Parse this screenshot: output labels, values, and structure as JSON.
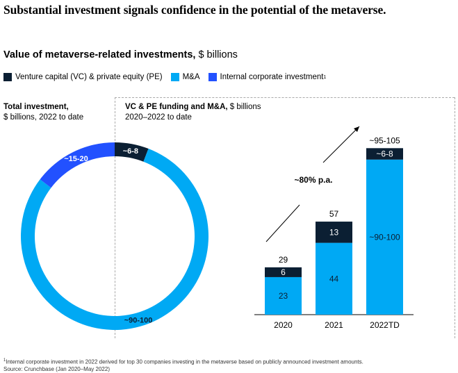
{
  "headline": "Substantial investment signals confidence in the potential of the metaverse.",
  "subtitle": {
    "bold": "Value of metaverse-related investments,",
    "rest": " $ billions"
  },
  "legend": [
    {
      "label": "Venture capital (VC) & private equity (PE)",
      "color": "#0b1f33",
      "sup": ""
    },
    {
      "label": "M&A",
      "color": "#00a9f4",
      "sup": ""
    },
    {
      "label": "Internal corporate investment",
      "color": "#2251ff",
      "sup": "1"
    }
  ],
  "left_panel": {
    "title": "Total investment,",
    "subtitle": "$ billions, 2022 to date"
  },
  "right_panel": {
    "title": "VC & PE funding and M&A,",
    "unit": " $ billions",
    "subtitle": "2020–2022 to date"
  },
  "growth_label": "~80% p.a.",
  "footnote": {
    "sup": "1",
    "line1": "Internal corporate investment in 2022 derived for top 30 companies investing in the metaverse based on publicly announced investment amounts.",
    "line2": "Source: Crunchbase (Jan 2020–May 2022)"
  },
  "chart_data": [
    {
      "type": "pie",
      "title": "Total investment, $ billions, 2022 to date",
      "style": "donut",
      "slices": [
        {
          "label": "~6-8",
          "series": "Venture capital (VC) & private equity (PE)",
          "value": 7,
          "color": "#0b1f33"
        },
        {
          "label": "~90-100",
          "series": "M&A",
          "value": 95,
          "color": "#00a9f4"
        },
        {
          "label": "~15-20",
          "series": "Internal corporate investment",
          "value": 17.5,
          "color": "#2251ff"
        }
      ]
    },
    {
      "type": "bar",
      "stacked": true,
      "title": "VC & PE funding and M&A, $ billions, 2020–2022 to date",
      "categories": [
        "2020",
        "2021",
        "2022TD"
      ],
      "totals": [
        "29",
        "57",
        "~95-105"
      ],
      "series": [
        {
          "name": "M&A",
          "color": "#00a9f4",
          "values": [
            23,
            44,
            95
          ],
          "labels": [
            "23",
            "44",
            "~90-100"
          ]
        },
        {
          "name": "Venture capital (VC) & private equity (PE)",
          "color": "#0b1f33",
          "values": [
            6,
            13,
            7
          ],
          "labels": [
            "6",
            "13",
            "~6-8"
          ]
        }
      ]
    }
  ]
}
